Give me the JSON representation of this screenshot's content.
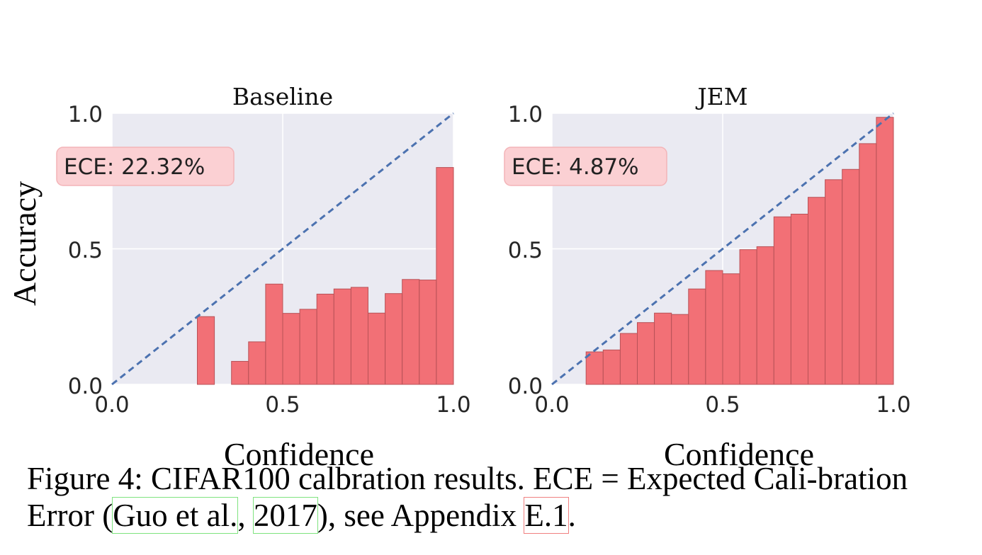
{
  "chart_data": [
    {
      "type": "bar",
      "title": "Baseline",
      "xlabel": "Confidence",
      "ylabel": "Accuracy",
      "xlim": [
        0,
        1
      ],
      "ylim": [
        0,
        1
      ],
      "xticks": [
        "0.0",
        "0.5",
        "1.0"
      ],
      "yticks": [
        "0.0",
        "0.5",
        "1.0"
      ],
      "grid": true,
      "diagonal_reference": true,
      "bin_width": 0.05,
      "bins": [
        {
          "x": 0.25,
          "y": 0.25
        },
        {
          "x": 0.35,
          "y": 0.085
        },
        {
          "x": 0.4,
          "y": 0.157
        },
        {
          "x": 0.45,
          "y": 0.37
        },
        {
          "x": 0.5,
          "y": 0.262
        },
        {
          "x": 0.55,
          "y": 0.277
        },
        {
          "x": 0.6,
          "y": 0.333
        },
        {
          "x": 0.65,
          "y": 0.352
        },
        {
          "x": 0.7,
          "y": 0.358
        },
        {
          "x": 0.75,
          "y": 0.263
        },
        {
          "x": 0.8,
          "y": 0.335
        },
        {
          "x": 0.85,
          "y": 0.387
        },
        {
          "x": 0.9,
          "y": 0.385
        },
        {
          "x": 0.95,
          "y": 0.8
        }
      ],
      "ece_label": "ECE: 22.32%"
    },
    {
      "type": "bar",
      "title": "JEM",
      "xlabel": "Confidence",
      "xlim": [
        0,
        1
      ],
      "ylim": [
        0,
        1
      ],
      "xticks": [
        "0.0",
        "0.5",
        "1.0"
      ],
      "yticks": [
        "0.0",
        "0.5",
        "1.0"
      ],
      "grid": true,
      "diagonal_reference": true,
      "bin_width": 0.05,
      "bins": [
        {
          "x": 0.1,
          "y": 0.12
        },
        {
          "x": 0.15,
          "y": 0.127
        },
        {
          "x": 0.2,
          "y": 0.188
        },
        {
          "x": 0.25,
          "y": 0.228
        },
        {
          "x": 0.3,
          "y": 0.263
        },
        {
          "x": 0.35,
          "y": 0.258
        },
        {
          "x": 0.4,
          "y": 0.352
        },
        {
          "x": 0.45,
          "y": 0.42
        },
        {
          "x": 0.5,
          "y": 0.408
        },
        {
          "x": 0.55,
          "y": 0.497
        },
        {
          "x": 0.6,
          "y": 0.508
        },
        {
          "x": 0.65,
          "y": 0.618
        },
        {
          "x": 0.7,
          "y": 0.628
        },
        {
          "x": 0.75,
          "y": 0.69
        },
        {
          "x": 0.8,
          "y": 0.755
        },
        {
          "x": 0.85,
          "y": 0.793
        },
        {
          "x": 0.9,
          "y": 0.888
        },
        {
          "x": 0.95,
          "y": 0.985
        }
      ],
      "ece_label": "ECE: 4.87%"
    }
  ],
  "caption": {
    "figure_label": "Figure 4:",
    "text_before": " CIFAR100 calbration results.  ECE = Expected Cali-bration Error (",
    "cite_author": "Guo et al.",
    "cite_sep": ", ",
    "cite_year": "2017",
    "text_mid": "), see Appendix ",
    "appendix_ref": "E.1",
    "text_end": "."
  },
  "colors": {
    "plot_bg": "#eaeaf2",
    "bar_fill": "#f27076",
    "bar_edge": "#b85257",
    "diagonal": "#4c72b0",
    "ece_box_fill": "#fbd0d3",
    "ece_box_edge": "#f3b4b8"
  }
}
